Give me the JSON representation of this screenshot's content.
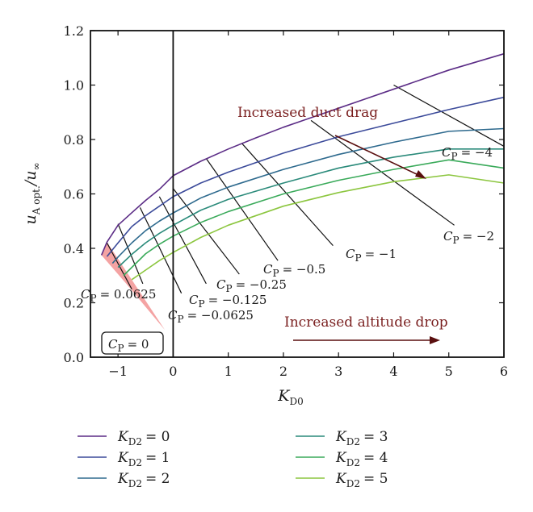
{
  "chart_data": {
    "type": "line",
    "xlabel": "K_D0",
    "ylabel": "u_A opt./u_∞",
    "xlim": [
      -1.5,
      6
    ],
    "ylim": [
      0,
      1.2
    ],
    "xticks": [
      -1,
      0,
      1,
      2,
      3,
      4,
      5,
      6
    ],
    "yticks": [
      0.0,
      0.2,
      0.4,
      0.6,
      0.8,
      1.0,
      1.2
    ],
    "grid": false,
    "legend_position": "bottom, two columns",
    "series": [
      {
        "name": "K_D2 = 0",
        "color": "#5b2c86",
        "points": [
          [
            -1.3,
            0.375
          ],
          [
            -1.2,
            0.423
          ],
          [
            -1,
            0.485
          ],
          [
            -0.75,
            0.531
          ],
          [
            -0.5,
            0.576
          ],
          [
            -0.25,
            0.617
          ],
          [
            0,
            0.667
          ],
          [
            0.5,
            0.72
          ],
          [
            1,
            0.765
          ],
          [
            1.5,
            0.806
          ],
          [
            2,
            0.845
          ],
          [
            2.5,
            0.88
          ],
          [
            3,
            0.915
          ],
          [
            3.5,
            0.95
          ],
          [
            4,
            0.985
          ],
          [
            5,
            1.055
          ],
          [
            6,
            1.115
          ]
        ]
      },
      {
        "name": "K_D2 = 1",
        "color": "#3b4a9a",
        "points": [
          [
            -1.2,
            0.37
          ],
          [
            -1,
            0.42
          ],
          [
            -0.75,
            0.48
          ],
          [
            -0.5,
            0.52
          ],
          [
            -0.25,
            0.555
          ],
          [
            0,
            0.59
          ],
          [
            0.5,
            0.64
          ],
          [
            1,
            0.68
          ],
          [
            2,
            0.75
          ],
          [
            3,
            0.81
          ],
          [
            4,
            0.86
          ],
          [
            5,
            0.91
          ],
          [
            6,
            0.955
          ]
        ]
      },
      {
        "name": "K_D2 = 2",
        "color": "#2e6a8e",
        "points": [
          [
            -1.1,
            0.345
          ],
          [
            -1,
            0.368
          ],
          [
            -0.75,
            0.42
          ],
          [
            -0.5,
            0.465
          ],
          [
            -0.25,
            0.5
          ],
          [
            0,
            0.53
          ],
          [
            0.5,
            0.585
          ],
          [
            1,
            0.625
          ],
          [
            2,
            0.69
          ],
          [
            3,
            0.745
          ],
          [
            4,
            0.79
          ],
          [
            5,
            0.83
          ],
          [
            6,
            0.84
          ]
        ]
      },
      {
        "name": "K_D2 = 3",
        "color": "#2a8a7a",
        "points": [
          [
            -1,
            0.33
          ],
          [
            -0.75,
            0.378
          ],
          [
            -0.5,
            0.42
          ],
          [
            -0.25,
            0.455
          ],
          [
            0,
            0.485
          ],
          [
            0.5,
            0.54
          ],
          [
            1,
            0.58
          ],
          [
            2,
            0.64
          ],
          [
            3,
            0.695
          ],
          [
            4,
            0.735
          ],
          [
            5,
            0.765
          ],
          [
            6,
            0.765
          ]
        ]
      },
      {
        "name": "K_D2 = 4",
        "color": "#3aaa5a",
        "points": [
          [
            -0.9,
            0.3
          ],
          [
            -0.75,
            0.33
          ],
          [
            -0.5,
            0.38
          ],
          [
            -0.25,
            0.415
          ],
          [
            0,
            0.445
          ],
          [
            0.5,
            0.495
          ],
          [
            1,
            0.535
          ],
          [
            2,
            0.6
          ],
          [
            3,
            0.65
          ],
          [
            4,
            0.69
          ],
          [
            5,
            0.725
          ],
          [
            6,
            0.695
          ]
        ]
      },
      {
        "name": "K_D2 = 5",
        "color": "#8cc63f",
        "points": [
          [
            -0.75,
            0.285
          ],
          [
            -0.5,
            0.32
          ],
          [
            -0.25,
            0.355
          ],
          [
            0,
            0.385
          ],
          [
            0.5,
            0.44
          ],
          [
            1,
            0.485
          ],
          [
            2,
            0.555
          ],
          [
            3,
            0.605
          ],
          [
            4,
            0.645
          ],
          [
            5,
            0.67
          ],
          [
            6,
            0.64
          ]
        ]
      }
    ],
    "cp_lines": [
      {
        "label": "C_P = −4",
        "points": [
          [
            4,
            1.0
          ],
          [
            6,
            0.775
          ]
        ]
      },
      {
        "label": "C_P = −2",
        "points": [
          [
            2.5,
            0.87
          ],
          [
            5.1,
            0.485
          ]
        ]
      },
      {
        "label": "C_P = −1",
        "points": [
          [
            1.25,
            0.785
          ],
          [
            2.9,
            0.41
          ]
        ]
      },
      {
        "label": "C_P = −0.5",
        "points": [
          [
            0.6,
            0.73
          ],
          [
            1.9,
            0.355
          ]
        ]
      },
      {
        "label": "C_P = −0.25",
        "points": [
          [
            0,
            0.62
          ],
          [
            1.2,
            0.305
          ]
        ]
      },
      {
        "label": "C_P = −0.125",
        "points": [
          [
            -0.25,
            0.59
          ],
          [
            0.6,
            0.27
          ]
        ]
      },
      {
        "label": "C_P = −0.0625",
        "points": [
          [
            -0.6,
            0.55
          ],
          [
            0.15,
            0.235
          ]
        ]
      },
      {
        "label": "C_P = 0.0625",
        "points": [
          [
            -1.0,
            0.49
          ],
          [
            -0.55,
            0.27
          ]
        ]
      },
      {
        "label": "C_P = 0",
        "points": [
          [
            -1.2,
            0.42
          ],
          [
            -0.75,
            0.25
          ]
        ]
      }
    ],
    "annotations": {
      "duct_drag": "Increased duct drag",
      "altitude_drop": "Increased altitude drop",
      "cp_zero_box": "C_P = 0"
    }
  },
  "cp_texts": {
    "m4": "= −4",
    "m2": "= −2",
    "m1": "= −1",
    "m05": "= −0.5",
    "m025": "= −0.25",
    "m0125": "= −0.125",
    "m00625": "= −0.0625",
    "p00625": "= 0.0625",
    "zero": "= 0"
  },
  "legend": {
    "k0": "= 0",
    "k1": "= 1",
    "k2": "= 2",
    "k3": "= 3",
    "k4": "= 4",
    "k5": "= 5"
  },
  "tick_labels_x": [
    "−1",
    "0",
    "1",
    "2",
    "3",
    "4",
    "5",
    "6"
  ],
  "tick_labels_y": [
    "0.0",
    "0.2",
    "0.4",
    "0.6",
    "0.8",
    "1.0",
    "1.2"
  ]
}
